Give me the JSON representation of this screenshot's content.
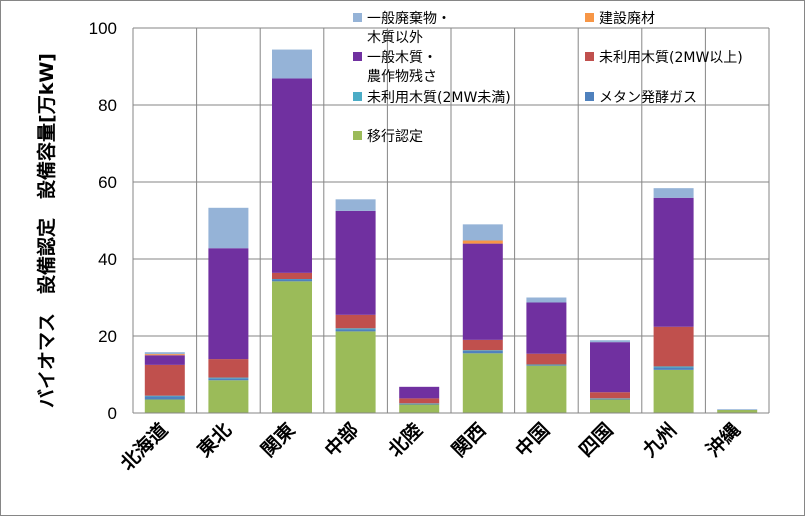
{
  "chart_data": {
    "type": "stacked-bar",
    "title": "",
    "xlabel": "",
    "ylabel": "バイオマス　設備認定　設備容量[万kW]",
    "ylim": [
      0,
      100
    ],
    "yticks": [
      0,
      20,
      40,
      60,
      80,
      100
    ],
    "grid": true,
    "legend_position": "top-right",
    "categories": [
      "北海道",
      "東北",
      "関東",
      "中部",
      "北陸",
      "関西",
      "中国",
      "四国",
      "九州",
      "沖縄"
    ],
    "series": [
      {
        "name": "移行認定",
        "color": "#9BBB59",
        "values": [
          3.5,
          8.5,
          34.2,
          21.2,
          2.2,
          15.5,
          12.3,
          3.5,
          11.2,
          0.8
        ]
      },
      {
        "name": "メタン発酵ガス",
        "color": "#4F81BD",
        "values": [
          0.8,
          0.5,
          0.5,
          0.5,
          0.2,
          0.6,
          0.2,
          0.2,
          0.6,
          0.1
        ]
      },
      {
        "name": "未利用木質(2MW未満)",
        "color": "#4BACC6",
        "values": [
          0.2,
          0.2,
          0.1,
          0.3,
          0.1,
          0.2,
          0.1,
          0.1,
          0.3,
          0.0
        ]
      },
      {
        "name": "未利用木質(2MW以上)",
        "color": "#C0504D",
        "values": [
          8.0,
          4.8,
          1.6,
          3.5,
          1.3,
          2.7,
          2.8,
          1.6,
          10.3,
          0.0
        ]
      },
      {
        "name": "一般木質・\n農作物残さ",
        "color": "#7030A0",
        "values": [
          2.5,
          28.8,
          50.5,
          27.0,
          3.0,
          25.0,
          13.3,
          13.0,
          33.5,
          0.0
        ]
      },
      {
        "name": "建設廃材",
        "color": "#F79646",
        "values": [
          0.3,
          0.0,
          0.0,
          0.0,
          0.0,
          0.8,
          0.0,
          0.0,
          0.0,
          0.0
        ]
      },
      {
        "name": "一般廃棄物・\n木質以外",
        "color": "#95B3D7",
        "values": [
          0.5,
          10.5,
          7.5,
          3.0,
          0.0,
          4.2,
          1.3,
          0.5,
          2.5,
          0.0
        ]
      }
    ],
    "legend_order": [
      "一般廃棄物・\n木質以外",
      "建設廃材",
      "一般木質・\n農作物残さ",
      "未利用木質(2MW以上)",
      "未利用木質(2MW未満)",
      "メタン発酵ガス",
      "移行認定"
    ]
  }
}
